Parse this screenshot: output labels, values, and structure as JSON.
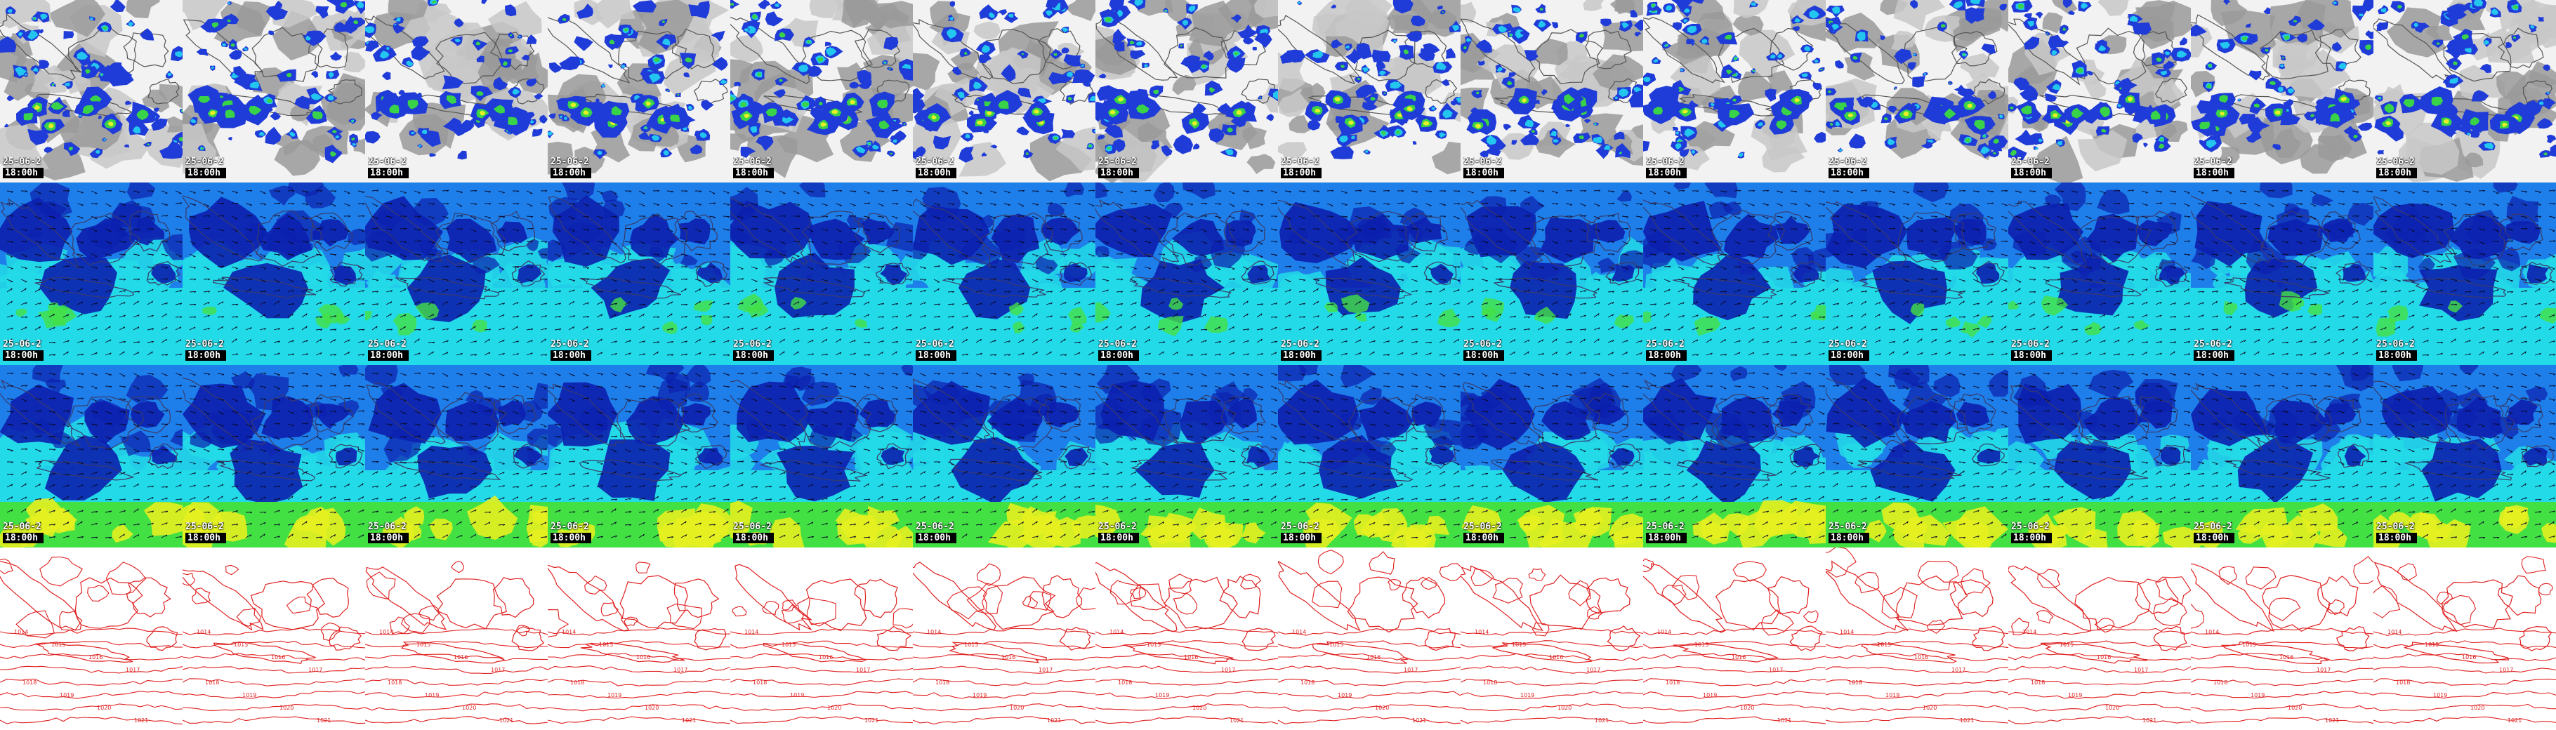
{
  "montage": {
    "columns": 14,
    "rows": [
      {
        "name": "satellite-infrared",
        "badges": true
      },
      {
        "name": "wind-speed-upper",
        "badges": true
      },
      {
        "name": "wind-speed-lower",
        "badges": true
      },
      {
        "name": "sea-level-pressure",
        "badges": false
      }
    ]
  },
  "frame_label": {
    "date": "25-06-2",
    "hours": [
      "18:00h",
      "18:00h",
      "18:00h",
      "18:00h",
      "18:00h",
      "18:00h",
      "18:00h",
      "18:00h",
      "18:00h",
      "18:00h",
      "18:00h",
      "18:00h",
      "18:00h",
      "18:00h"
    ]
  },
  "isobar_labels": [
    "1014",
    "1015",
    "1016",
    "1017",
    "1018",
    "1019",
    "1020",
    "1021"
  ],
  "colors": {
    "sat_ocean": "#f2f2f2",
    "sat_land": "#9a9a9a",
    "sat_cloud_blue": "#1f3bd8",
    "sat_cloud_cyan": "#22c6ee",
    "sat_cloud_green": "#39d34a",
    "sat_cloud_yellow": "#e8ef28",
    "wind_deep": "#0c1fae",
    "wind_mid": "#1e7fea",
    "wind_cyan": "#23dbe8",
    "wind_green": "#43e043",
    "wind_yellow": "#e6f020",
    "isobar": "#e02020",
    "coast": "#3a3a6a"
  }
}
